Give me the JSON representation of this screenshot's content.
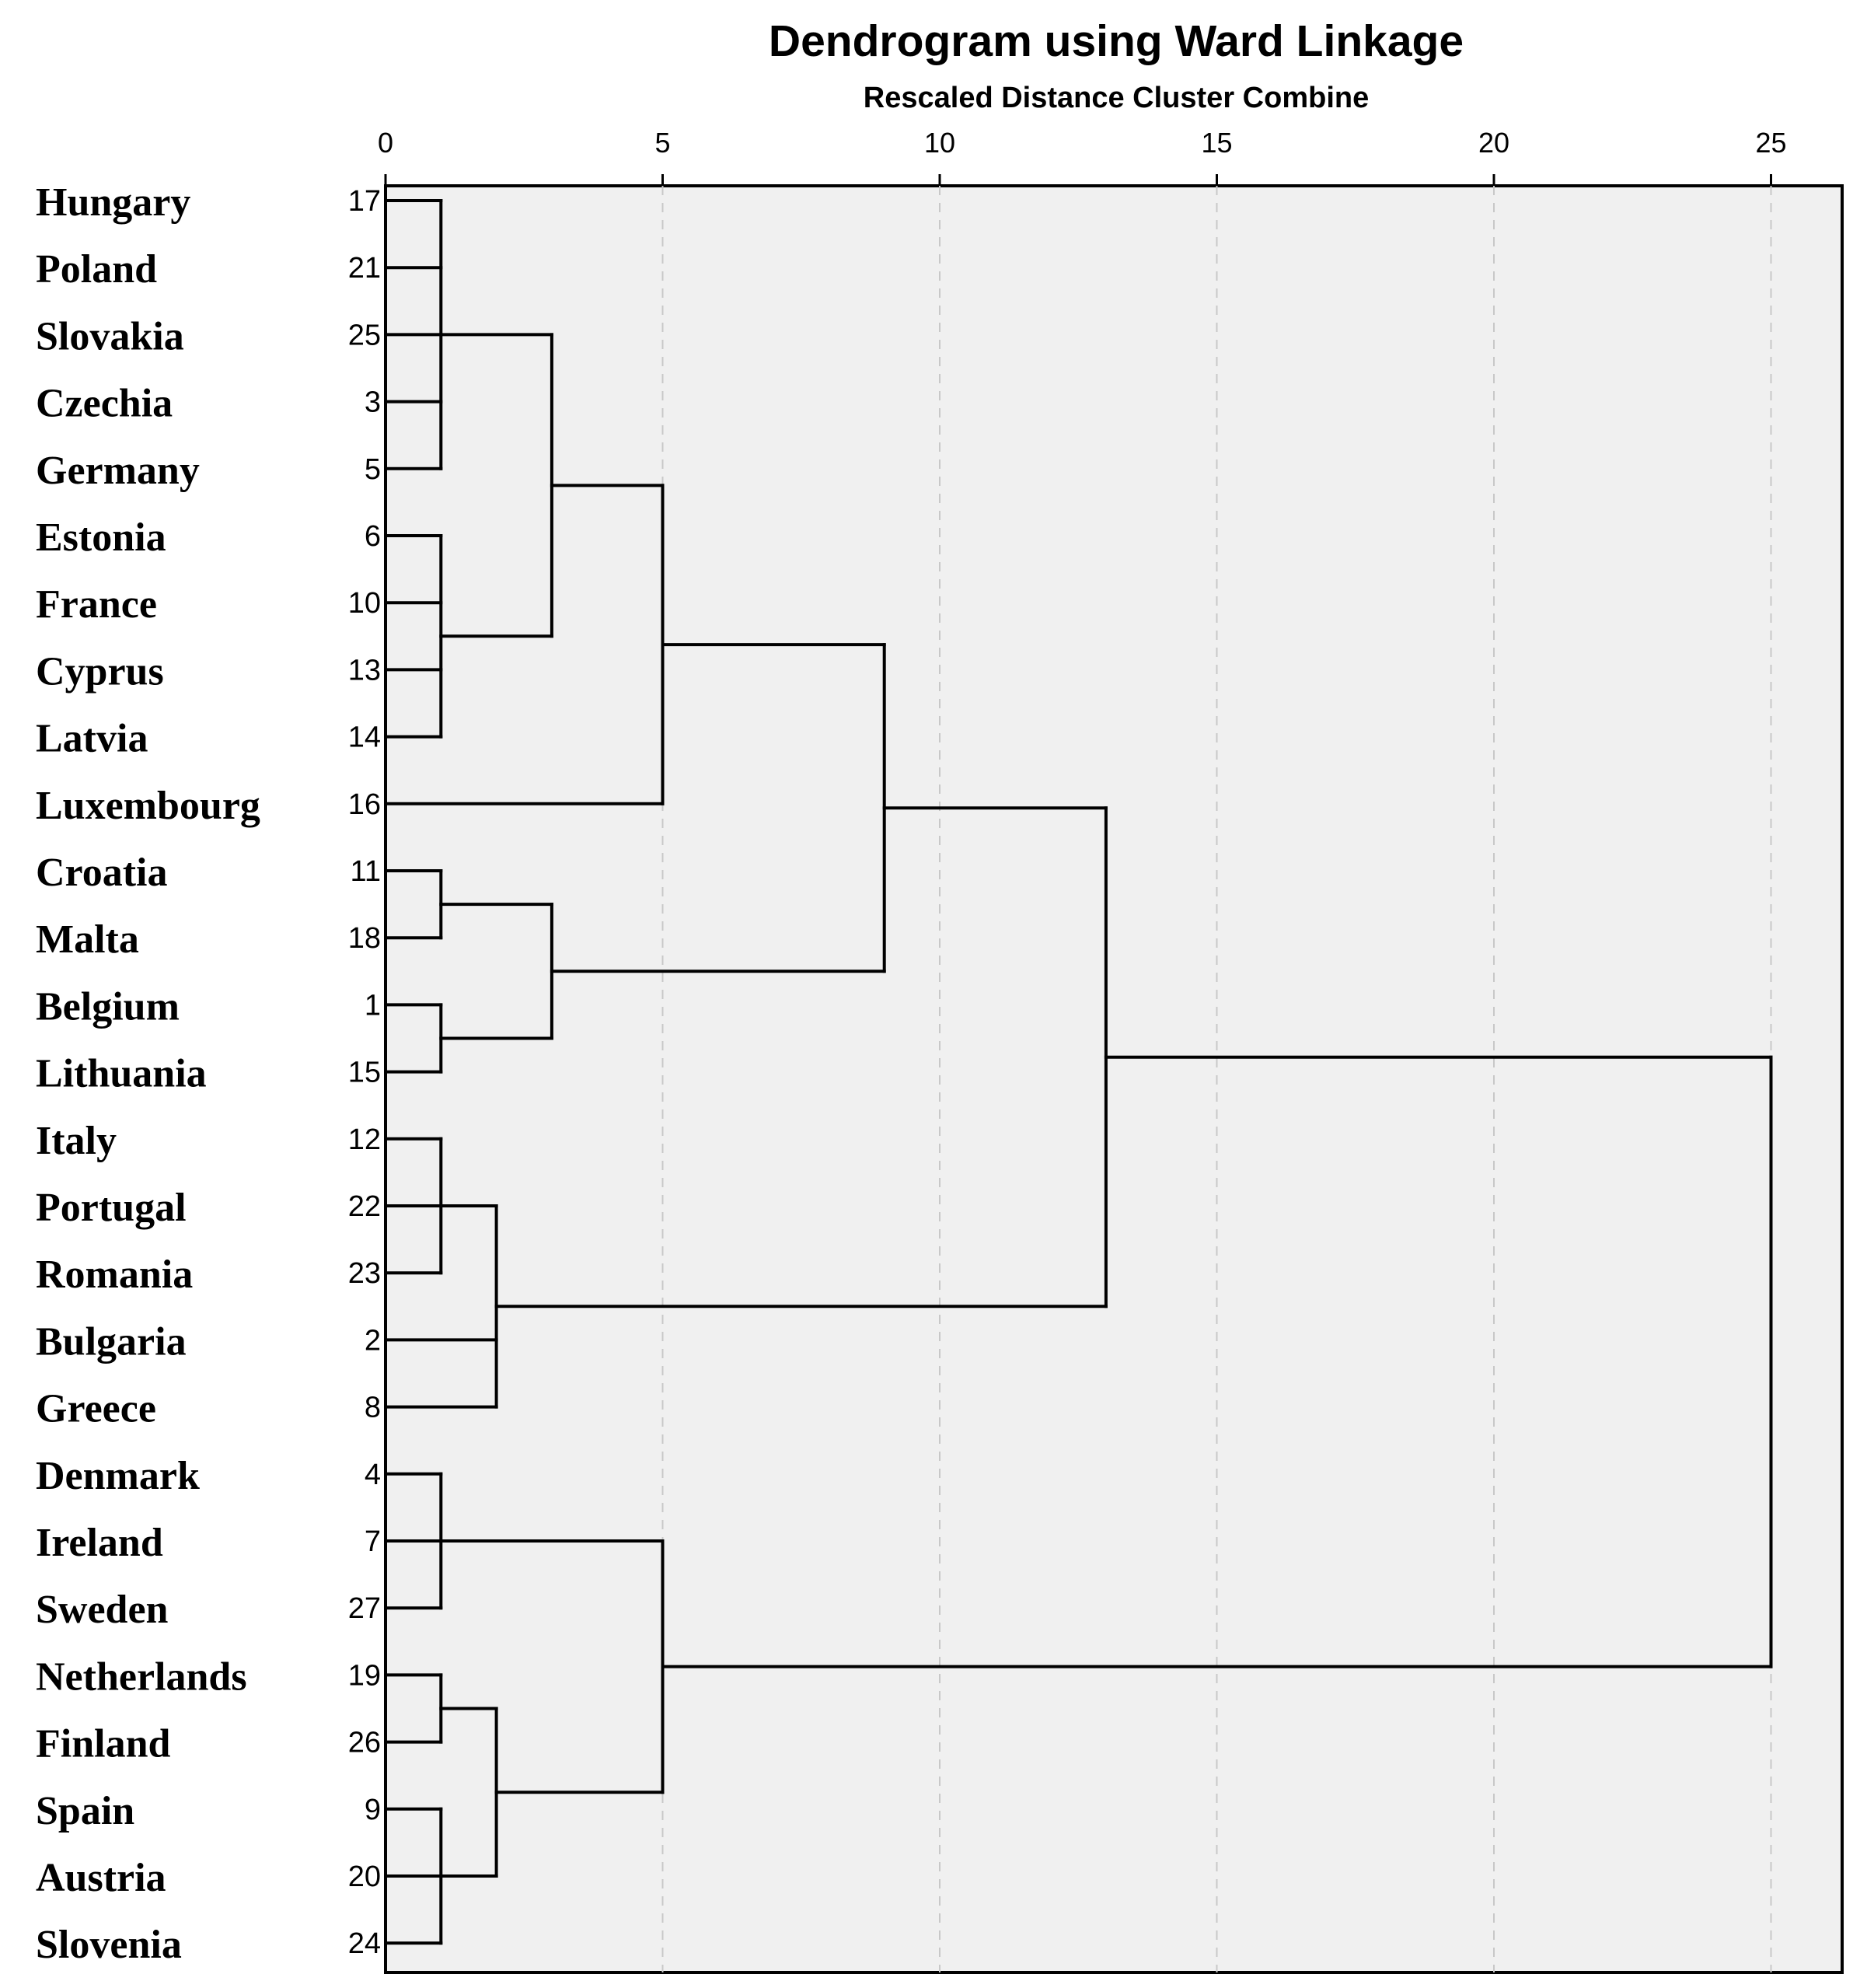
{
  "chart_data": {
    "type": "dendrogram",
    "title": "Dendrogram using Ward Linkage",
    "subtitle": "Rescaled Distance Cluster Combine",
    "xlim": [
      0,
      26.3
    ],
    "ticks": [
      0,
      5,
      10,
      15,
      20,
      25
    ],
    "tick_labels": [
      "0",
      "5",
      "10",
      "15",
      "20",
      "25"
    ],
    "grid": "vertical dashed at ticks",
    "colors": {
      "background": "#f0f0f0",
      "line": "#000000",
      "grid": "#c8c8c8"
    },
    "leaves": [
      {
        "label": "Hungary",
        "case": "17"
      },
      {
        "label": "Poland",
        "case": "21"
      },
      {
        "label": "Slovakia",
        "case": "25"
      },
      {
        "label": "Czechia",
        "case": "3"
      },
      {
        "label": "Germany",
        "case": "5"
      },
      {
        "label": "Estonia",
        "case": "6"
      },
      {
        "label": "France",
        "case": "10"
      },
      {
        "label": "Cyprus",
        "case": "13"
      },
      {
        "label": "Latvia",
        "case": "14"
      },
      {
        "label": "Luxembourg",
        "case": "16"
      },
      {
        "label": "Croatia",
        "case": "11"
      },
      {
        "label": "Malta",
        "case": "18"
      },
      {
        "label": "Belgium",
        "case": "1"
      },
      {
        "label": "Lithuania",
        "case": "15"
      },
      {
        "label": "Italy",
        "case": "12"
      },
      {
        "label": "Portugal",
        "case": "22"
      },
      {
        "label": "Romania",
        "case": "23"
      },
      {
        "label": "Bulgaria",
        "case": "2"
      },
      {
        "label": "Greece",
        "case": "8"
      },
      {
        "label": "Denmark",
        "case": "4"
      },
      {
        "label": "Ireland",
        "case": "7"
      },
      {
        "label": "Sweden",
        "case": "27"
      },
      {
        "label": "Netherlands",
        "case": "19"
      },
      {
        "label": "Finland",
        "case": "26"
      },
      {
        "label": "Spain",
        "case": "9"
      },
      {
        "label": "Austria",
        "case": "20"
      },
      {
        "label": "Slovenia",
        "case": "24"
      }
    ],
    "merges": [
      {
        "id": "A",
        "children": [
          0,
          1,
          2,
          3,
          4
        ],
        "height": 1
      },
      {
        "id": "B",
        "children": [
          5,
          6,
          7,
          8
        ],
        "height": 1
      },
      {
        "id": "C",
        "children": [
          "A",
          "B"
        ],
        "height": 3
      },
      {
        "id": "D",
        "children": [
          "C",
          9
        ],
        "height": 5
      },
      {
        "id": "E",
        "children": [
          10,
          11
        ],
        "height": 1
      },
      {
        "id": "F",
        "children": [
          12,
          13
        ],
        "height": 1
      },
      {
        "id": "G",
        "children": [
          "E",
          "F"
        ],
        "height": 3
      },
      {
        "id": "H",
        "children": [
          "D",
          "G"
        ],
        "height": 9
      },
      {
        "id": "I",
        "children": [
          14,
          15,
          16
        ],
        "height": 1
      },
      {
        "id": "J",
        "children": [
          "I",
          17,
          18
        ],
        "height": 2
      },
      {
        "id": "K",
        "children": [
          "H",
          "J"
        ],
        "height": 13
      },
      {
        "id": "L",
        "children": [
          19,
          20,
          21
        ],
        "height": 1
      },
      {
        "id": "M",
        "children": [
          22,
          23
        ],
        "height": 1
      },
      {
        "id": "N",
        "children": [
          24,
          25,
          26
        ],
        "height": 1
      },
      {
        "id": "O",
        "children": [
          "M",
          "N"
        ],
        "height": 2
      },
      {
        "id": "P",
        "children": [
          "L",
          "O"
        ],
        "height": 5
      },
      {
        "id": "Q",
        "children": [
          "K",
          "P"
        ],
        "height": 25
      }
    ]
  }
}
